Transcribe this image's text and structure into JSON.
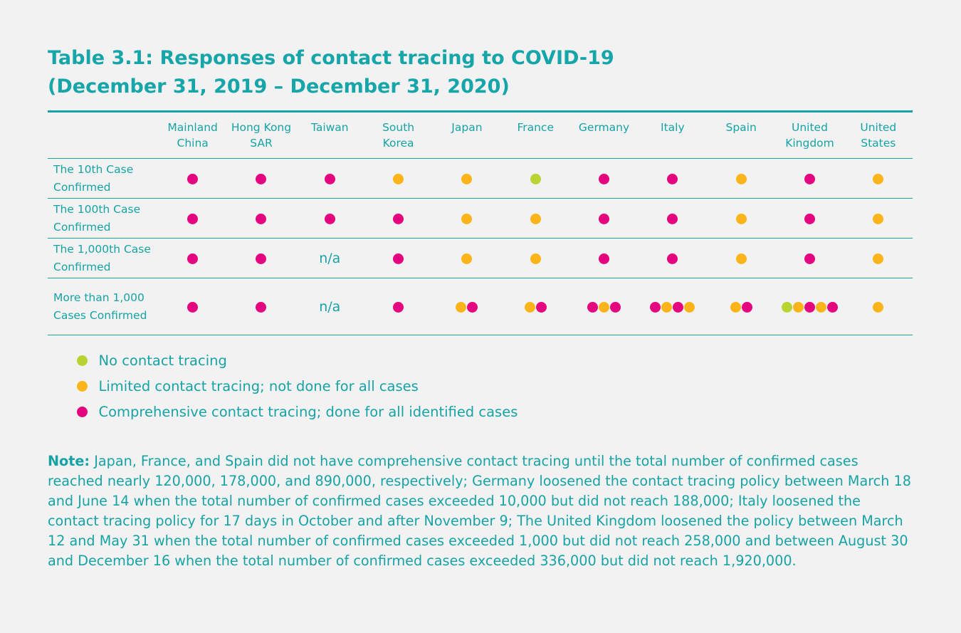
{
  "header": {
    "title_line1": "Table 3.1: Responses of contact tracing to COVID-19",
    "title_line2": "(December 31, 2019 – December 31, 2020)"
  },
  "table": {
    "columns": [
      "Mainland China",
      "Hong Kong SAR",
      "Taiwan",
      "South Korea",
      "Japan",
      "France",
      "Germany",
      "Italy",
      "Spain",
      "United Kingdom",
      "United States"
    ],
    "rows": [
      {
        "label": "The 10th Case Confirmed",
        "cells": [
          [
            2
          ],
          [
            2
          ],
          [
            2
          ],
          [
            1
          ],
          [
            1
          ],
          [
            0
          ],
          [
            2
          ],
          [
            2
          ],
          [
            1
          ],
          [
            2
          ],
          [
            1
          ]
        ]
      },
      {
        "label": "The 100th Case Confirmed",
        "cells": [
          [
            2
          ],
          [
            2
          ],
          [
            2
          ],
          [
            2
          ],
          [
            1
          ],
          [
            1
          ],
          [
            2
          ],
          [
            2
          ],
          [
            1
          ],
          [
            2
          ],
          [
            1
          ]
        ]
      },
      {
        "label": "The 1,000th Case Confirmed",
        "cells": [
          [
            2
          ],
          [
            2
          ],
          "n/a",
          [
            2
          ],
          [
            1
          ],
          [
            1
          ],
          [
            2
          ],
          [
            2
          ],
          [
            1
          ],
          [
            2
          ],
          [
            1
          ]
        ]
      },
      {
        "label": "More than 1,000 Cases Confirmed",
        "cells": [
          [
            2
          ],
          [
            2
          ],
          "n/a",
          [
            2
          ],
          [
            1,
            2
          ],
          [
            1,
            2
          ],
          [
            2,
            1,
            2
          ],
          [
            2,
            1,
            2,
            1
          ],
          [
            1,
            2
          ],
          [
            0,
            1,
            2,
            1,
            2
          ],
          [
            1
          ]
        ]
      }
    ]
  },
  "legend": [
    {
      "label": "No contact tracing",
      "color": "#b8d433"
    },
    {
      "label": "Limited contact tracing; not done for all cases",
      "color": "#fbb51b"
    },
    {
      "label": "Comprehensive contact tracing; done for all identified cases",
      "color": "#e5067f"
    }
  ],
  "note": {
    "label": "Note:",
    "text": "Japan, France, and Spain did not have comprehensive contact tracing until the total number of confirmed cases reached nearly 120,000, 178,000, and 890,000, respectively; Germany loosened the contact tracing policy between March 18 and June 14 when the total number of confirmed cases exceeded 10,000 but did not reach 188,000; Italy loosened the contact tracing policy for 17 days in October and after November 9; The United Kingdom loosened the policy between March 12 and May 31 when the total number of confirmed cases exceeded 1,000 but did not reach 258,000 and between August 30 and December 16 when the total number of confirmed cases exceeded 336,000 but did not reach 1,920,000."
  }
}
